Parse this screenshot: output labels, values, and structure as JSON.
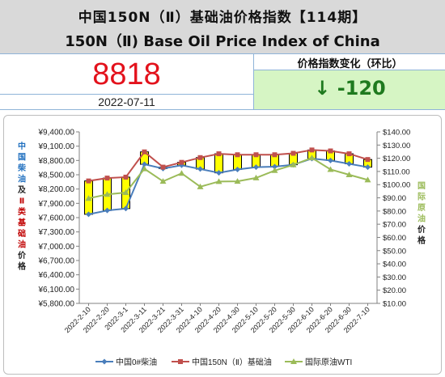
{
  "header": {
    "title_cn": "中国150N（Ⅱ）基础油价格指数【114期】",
    "title_en": "150N（Ⅱ) Base Oil Price Index of China"
  },
  "index": {
    "value": "8818",
    "date": "2022-07-11"
  },
  "change": {
    "label": "价格指数变化（环比）",
    "value": "↓ -120"
  },
  "colors": {
    "diesel": "#4a7ebb",
    "base_oil": "#c0504d",
    "wti": "#9bbb59",
    "candle": "#ffff00"
  },
  "chart_data": {
    "type": "line",
    "left_axis_label_parts": [
      "中国柴油",
      "及",
      "Ⅱ",
      "类基础油",
      "价格"
    ],
    "right_axis_label_parts": [
      "国际原油",
      "价格"
    ],
    "categories": [
      "2022-2-10",
      "2022-2-20",
      "2022-3-1",
      "2022-3-11",
      "2022-3-21",
      "2022-3-31",
      "2022-4-10",
      "2022-4-20",
      "2022-4-30",
      "2022-5-10",
      "2022-5-20",
      "2022-5-30",
      "2022-6-10",
      "2022-6-20",
      "2022-6-30",
      "2022-7-10"
    ],
    "left_ticks": [
      "¥9,400.00",
      "¥9,100.00",
      "¥8,800.00",
      "¥8,500.00",
      "¥8,200.00",
      "¥7,900.00",
      "¥7,600.00",
      "¥7,300.00",
      "¥7,000.00",
      "¥6,700.00",
      "¥6,400.00",
      "¥6,100.00",
      "¥5,800.00"
    ],
    "right_ticks": [
      "$140.00",
      "$130.00",
      "$120.00",
      "$110.00",
      "$100.00",
      "$90.00",
      "$80.00",
      "$70.00",
      "$60.00",
      "$50.00",
      "$40.00",
      "$30.00",
      "$20.00",
      "$10.00"
    ],
    "left_ylim": [
      5800,
      9400
    ],
    "right_ylim": [
      10,
      140
    ],
    "series": [
      {
        "name": "中国0#柴油",
        "axis": "left",
        "values": [
          7670,
          7750,
          7790,
          8720,
          8630,
          8700,
          8620,
          8540,
          8610,
          8660,
          8670,
          8710,
          8840,
          8800,
          8730,
          8660
        ]
      },
      {
        "name": "中国150N（Ⅱ）基础油",
        "axis": "left",
        "values": [
          8370,
          8430,
          8450,
          8980,
          8660,
          8760,
          8860,
          8940,
          8920,
          8920,
          8920,
          8950,
          9020,
          9000,
          8940,
          8820
        ]
      },
      {
        "name": "国际原油WTI",
        "axis": "right",
        "values": [
          89.6,
          92.6,
          94,
          112,
          102.5,
          108.6,
          98.4,
          102.4,
          102.5,
          105.1,
          110.7,
          115,
          120.3,
          111.5,
          107.5,
          103.6
        ]
      }
    ],
    "legend_position": "bottom",
    "grid": false
  }
}
